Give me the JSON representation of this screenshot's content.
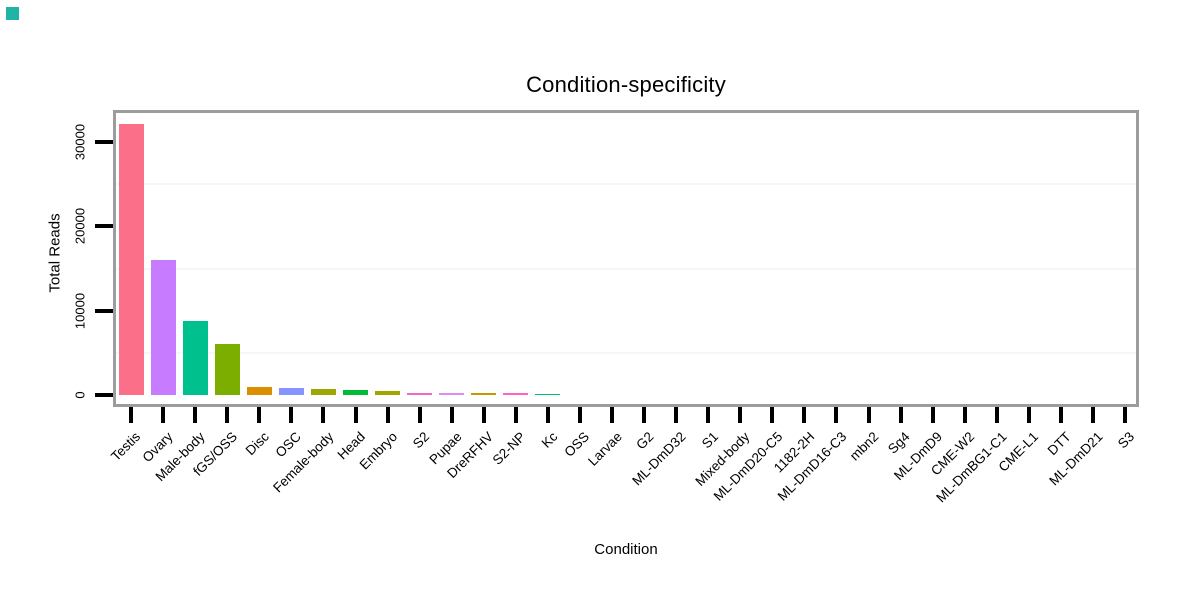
{
  "ui": {
    "background": "#FFFFFF",
    "corner_swatch_color": "#1FB4A6"
  },
  "chart_data": {
    "type": "bar",
    "title": "Condition-specificity",
    "xlabel": "Condition",
    "ylabel": "Total Reads",
    "ylim": [
      0,
      33000
    ],
    "yticks": [
      0,
      10000,
      20000,
      30000
    ],
    "ytick_labels": [
      "0",
      "10000",
      "20000",
      "30000"
    ],
    "minor_gridlines": [
      5000,
      15000,
      25000
    ],
    "grid": "minor-horizontal-only",
    "legend_position": "none",
    "x_label_rotation_deg": 45,
    "categories": [
      "Testis",
      "Ovary",
      "Male-body",
      "fGS/OSS",
      "Disc",
      "OSC",
      "Female-body",
      "Head",
      "Embryo",
      "S2",
      "Pupae",
      "DreRFHV",
      "S2-NP",
      "Kc",
      "OSS",
      "Larvae",
      "G2",
      "ML-DmD32",
      "S1",
      "Mixed-body",
      "ML-DmD20-C5",
      "1182-2H",
      "ML-DmD16-C3",
      "mbn2",
      "Sg4",
      "ML-DmD9",
      "CME-W2",
      "ML-DmBG1-C1",
      "CME-L1",
      "DTT",
      "ML-DmD21",
      "S3"
    ],
    "values": [
      32100,
      16000,
      8750,
      6100,
      950,
      830,
      730,
      560,
      450,
      280,
      210,
      200,
      190,
      150,
      20,
      15,
      12,
      10,
      9,
      8,
      7,
      6,
      5,
      4,
      4,
      3,
      3,
      2,
      2,
      1,
      1,
      0
    ],
    "bar_colors": [
      "#FC6F88",
      "#C77CFF",
      "#00C08E",
      "#7CAE00",
      "#DB8E00",
      "#8794FF",
      "#9DA700",
      "#00BB38",
      "#A3A500",
      "#F265CF",
      "#DE8CFA",
      "#C49A00",
      "#FF61C9",
      "#00BE6C",
      "#00B8E5",
      "#00ACFC",
      "#3F9EFF",
      "#7C96FF",
      "#B983FF",
      "#D177FF",
      "#9590FF",
      "#599FFF",
      "#00B3F2",
      "#6FB000",
      "#FF6B94",
      "#E88526",
      "#BC9D00",
      "#00BC51",
      "#00C1A7",
      "#00BFC4",
      "#D077FF",
      "#FF62BF"
    ],
    "style": {
      "panel_border_color": "#9C9C9C",
      "tick_color": "#000000",
      "minor_grid_color": "#F6F6F6",
      "title_color": "#000000"
    }
  }
}
